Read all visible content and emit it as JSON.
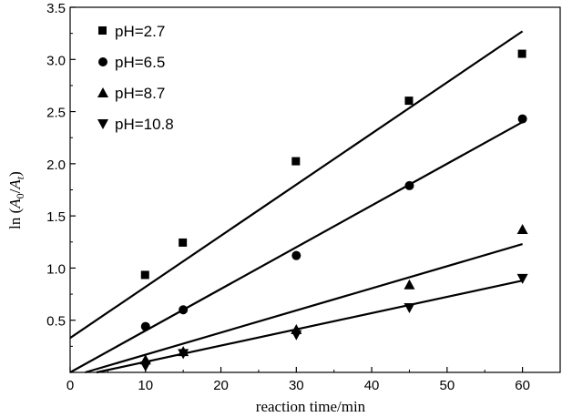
{
  "chart_data": {
    "type": "scatter",
    "title": "",
    "xlabel": "reaction time/min",
    "ylabel_parts": {
      "prefix": "ln (",
      "a0": "A",
      "sub0": "0",
      "slash": "/",
      "at": "A",
      "subt": "t",
      "suffix": ")"
    },
    "xlim": [
      0,
      65
    ],
    "ylim": [
      0,
      3.5
    ],
    "xticks": [
      0,
      10,
      20,
      30,
      40,
      50,
      60
    ],
    "yticks": [
      0.5,
      1.0,
      1.5,
      2.0,
      2.5,
      3.0,
      3.5
    ],
    "ytick_labels": [
      "0.5",
      "1.0",
      "1.5",
      "2.0",
      "2.5",
      "3.0",
      "3.5"
    ],
    "xtick_labels": [
      "0",
      "10",
      "20",
      "30",
      "40",
      "50",
      "60"
    ],
    "legend_position": "top-left",
    "series": [
      {
        "name": "pH=2.7",
        "marker": "square",
        "x": [
          10,
          15,
          30,
          45,
          60
        ],
        "y": [
          0.93,
          1.24,
          2.02,
          2.6,
          3.05
        ],
        "fit": {
          "x": [
            0,
            60
          ],
          "y": [
            0.33,
            3.27
          ]
        }
      },
      {
        "name": "pH=6.5",
        "marker": "circle",
        "x": [
          10,
          15,
          30,
          45,
          60
        ],
        "y": [
          0.44,
          0.6,
          1.12,
          1.79,
          2.43
        ],
        "fit": {
          "x": [
            0,
            60
          ],
          "y": [
            0.0,
            2.4
          ]
        }
      },
      {
        "name": "pH=8.7",
        "marker": "triangle-up",
        "x": [
          10,
          15,
          30,
          45,
          60
        ],
        "y": [
          0.12,
          0.2,
          0.41,
          0.84,
          1.37
        ],
        "fit": {
          "x": [
            2,
            60
          ],
          "y": [
            0.0,
            1.23
          ]
        }
      },
      {
        "name": "pH=10.8",
        "marker": "triangle-down",
        "x": [
          10,
          15,
          30,
          45,
          60
        ],
        "y": [
          0.06,
          0.18,
          0.36,
          0.62,
          0.9
        ],
        "fit": {
          "x": [
            3.5,
            60
          ],
          "y": [
            0.0,
            0.88
          ]
        }
      }
    ]
  }
}
